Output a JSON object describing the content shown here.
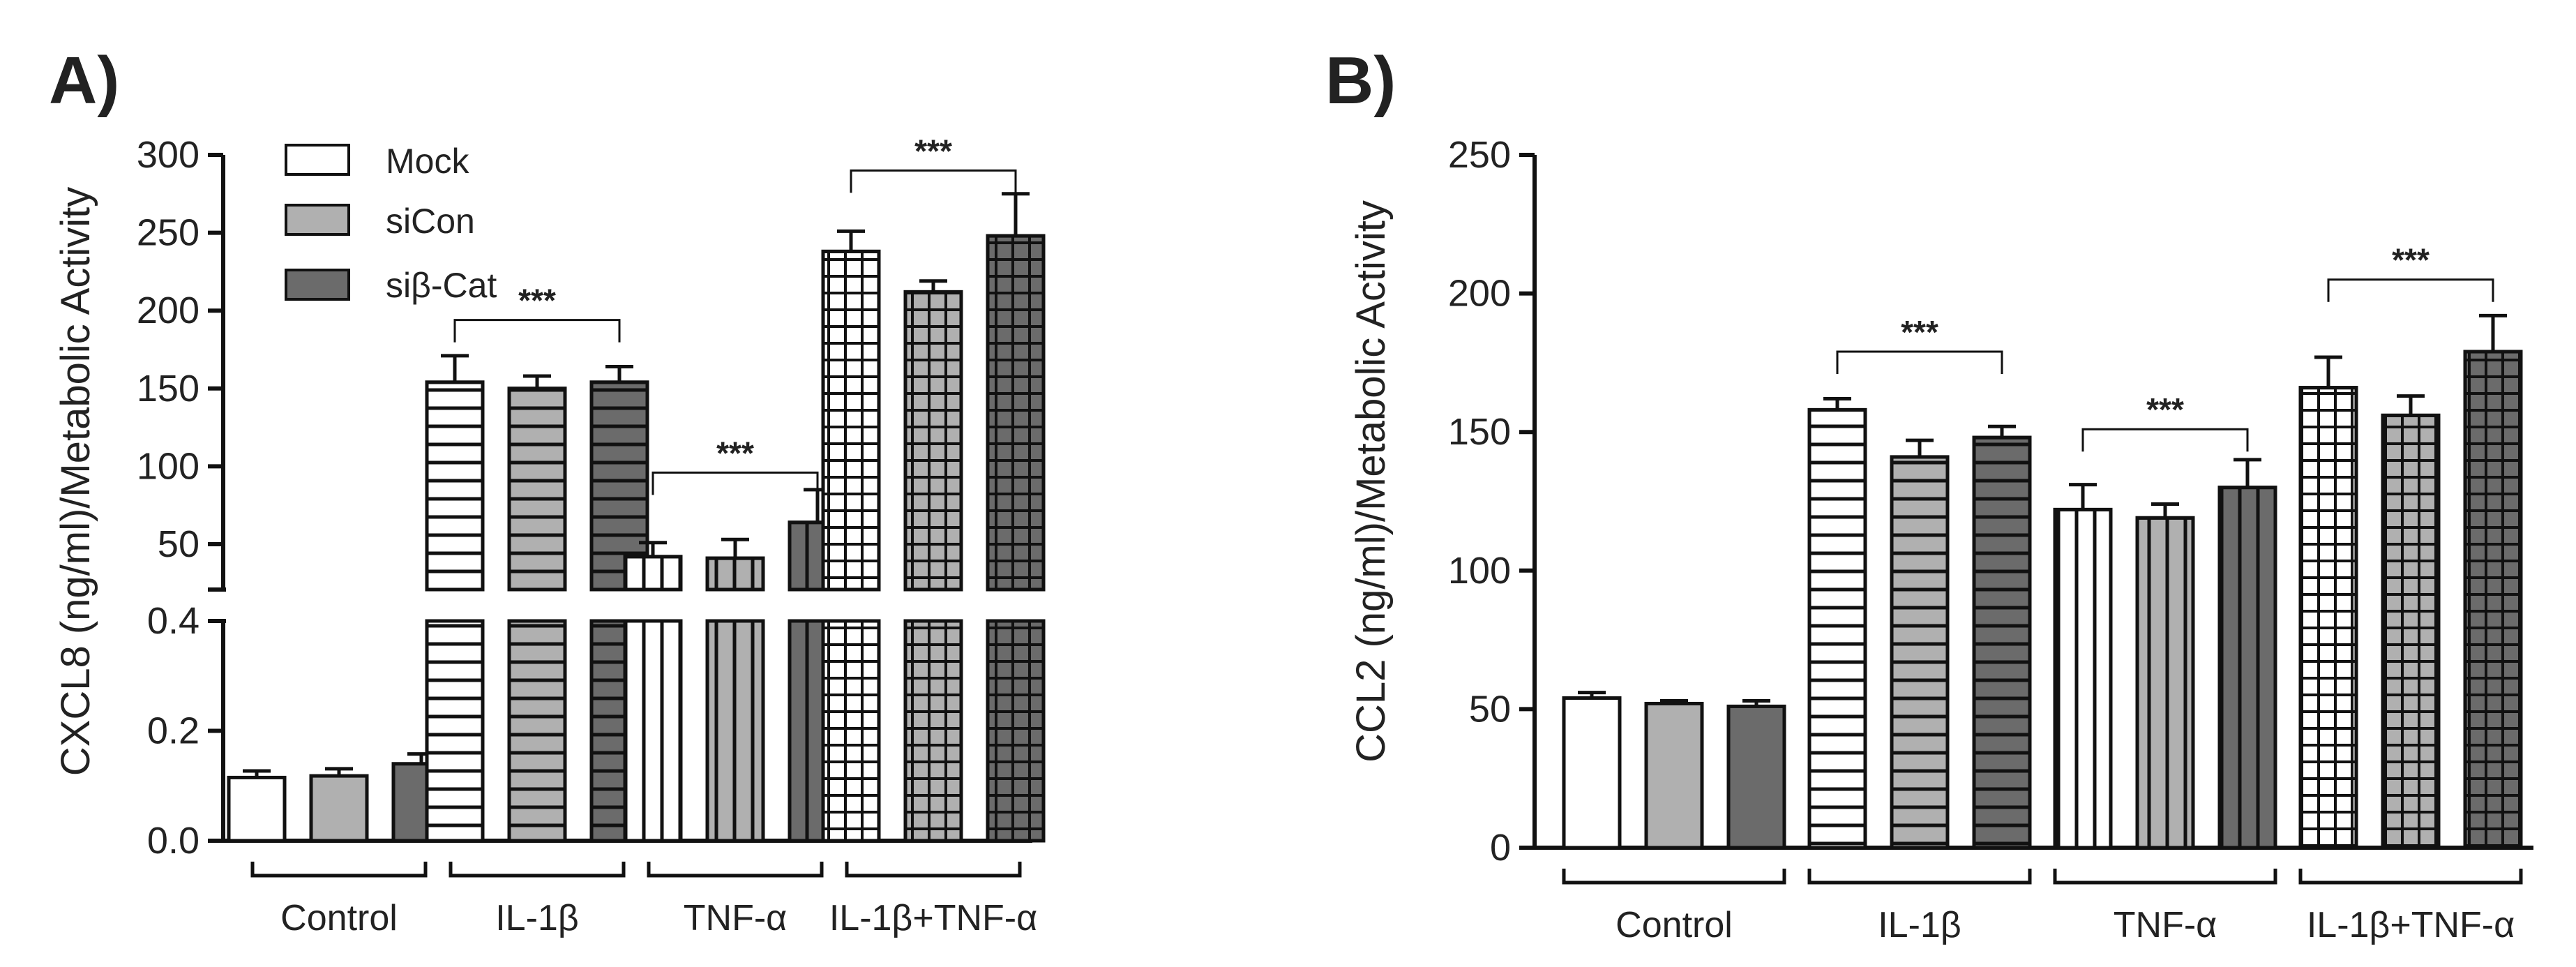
{
  "figure": {
    "panels": [
      "A)",
      "B)"
    ]
  },
  "legend": [
    {
      "name": "Mock",
      "fill": "#ffffff"
    },
    {
      "name": "siCon",
      "fill": "#b0b0b0"
    },
    {
      "name": "siβ-Cat",
      "fill": "#6b6b6b"
    }
  ],
  "colors": {
    "axis": "#1a1a1a",
    "mock": "#ffffff",
    "sicon": "#b0b0b0",
    "sibcat": "#6b6b6b"
  },
  "chart_data": [
    {
      "type": "bar",
      "panel": "A)",
      "ylabel": "CXCL8 (ng/ml)/Metabolic Activity",
      "broken_axis": true,
      "lower_range": [
        0,
        0.4
      ],
      "lower_ticks": [
        "0.0",
        "0.2",
        "0.4"
      ],
      "upper_range": [
        25,
        300
      ],
      "upper_ticks": [
        "50",
        "100",
        "150",
        "200",
        "250",
        "300"
      ],
      "groups": [
        "Control",
        "IL-1β",
        "TNF-α",
        "IL-1β+TNF-α"
      ],
      "patterns": [
        "solid",
        "horizontal",
        "vertical",
        "grid"
      ],
      "series": [
        {
          "name": "Mock",
          "values": [
            0.115,
            154,
            42,
            238
          ],
          "errors": [
            0.012,
            17,
            9,
            13
          ]
        },
        {
          "name": "siCon",
          "values": [
            0.118,
            150,
            41,
            212
          ],
          "errors": [
            0.013,
            8,
            12,
            7
          ]
        },
        {
          "name": "siβ-Cat",
          "values": [
            0.14,
            154,
            64,
            248
          ],
          "errors": [
            0.018,
            10,
            21,
            27
          ]
        }
      ],
      "significance": [
        {
          "group": 1,
          "label": "***",
          "at": 194
        },
        {
          "group": 2,
          "label": "***",
          "at": 96
        },
        {
          "group": 3,
          "label": "***",
          "at": 290
        }
      ]
    },
    {
      "type": "bar",
      "panel": "B)",
      "ylabel": "CCL2 (ng/ml)/Metabolic Activity",
      "ylim": [
        0,
        250
      ],
      "yticks": [
        "0",
        "50",
        "100",
        "150",
        "200",
        "250"
      ],
      "groups": [
        "Control",
        "IL-1β",
        "TNF-α",
        "IL-1β+TNF-α"
      ],
      "patterns": [
        "solid",
        "horizontal",
        "vertical",
        "grid"
      ],
      "series": [
        {
          "name": "Mock",
          "values": [
            54,
            158,
            122,
            166
          ],
          "errors": [
            2,
            4,
            9,
            11
          ]
        },
        {
          "name": "siCon",
          "values": [
            52,
            141,
            119,
            156
          ],
          "errors": [
            1,
            6,
            5,
            7
          ]
        },
        {
          "name": "siβ-Cat",
          "values": [
            51,
            148,
            130,
            179
          ],
          "errors": [
            2,
            4,
            10,
            13
          ]
        }
      ],
      "significance": [
        {
          "group": 1,
          "label": "***",
          "at": 179
        },
        {
          "group": 2,
          "label": "***",
          "at": 151
        },
        {
          "group": 3,
          "label": "***",
          "at": 205
        }
      ]
    }
  ]
}
